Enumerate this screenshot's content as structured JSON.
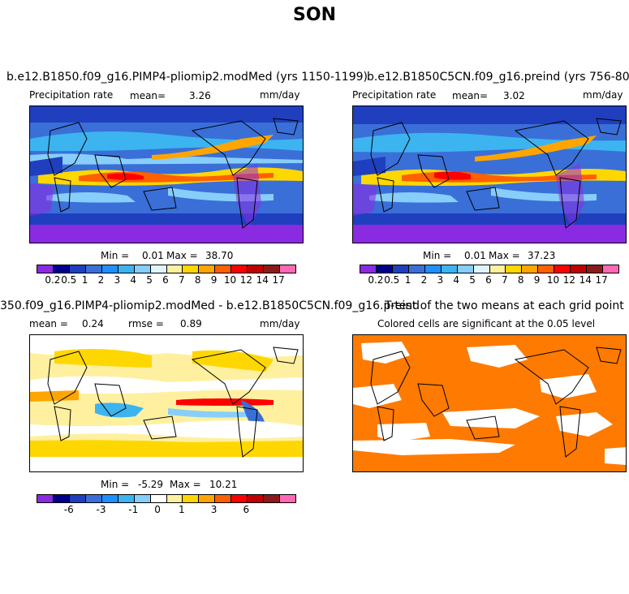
{
  "page": {
    "title": "SON"
  },
  "panels": {
    "top_left": {
      "title": "b.e12.B1850.f09_g16.PIMP4-pliomip2.modMed (yrs 1150-1199)",
      "variable": "Precipitation rate",
      "mean_label": "mean=",
      "mean_value": "3.26",
      "units": "mm/day",
      "min_label": "Min =",
      "min_value": "0.01",
      "max_label": "Max =",
      "max_value": "38.70"
    },
    "top_right": {
      "title": "b.e12.B1850C5CN.f09_g16.preind (yrs 756-805)",
      "variable": "Precipitation rate",
      "mean_label": "mean=",
      "mean_value": "3.02",
      "units": "mm/day",
      "min_label": "Min =",
      "min_value": "0.01",
      "max_label": "Max =",
      "max_value": "37.23"
    },
    "bottom_left": {
      "title": "350.f09_g16.PIMP4-pliomip2.modMed - b.e12.B1850C5CN.f09_g16.preind",
      "mean_label": "mean =",
      "mean_value": "0.24",
      "rmse_label": "rmse =",
      "rmse_value": "0.89",
      "units": "mm/day",
      "min_label": "Min =",
      "min_value": "-5.29",
      "max_label": "Max =",
      "max_value": "10.21"
    },
    "bottom_right": {
      "title": "T-test of the two means at each grid point",
      "subtitle": "Colored cells are significant at the 0.05 level",
      "significant_color": "#ff7a00"
    }
  },
  "colorbars": {
    "precip": {
      "colors": [
        "#8a2be2",
        "#00008b",
        "#1f3fbf",
        "#3a6fd8",
        "#1e90ff",
        "#3cb4f0",
        "#87cefa",
        "#e0f4ff",
        "#fff0a0",
        "#ffd700",
        "#ffa500",
        "#ff6000",
        "#ff0000",
        "#c00000",
        "#8b1a1a",
        "#ff69b4"
      ],
      "ticks": [
        "0.2",
        "0.5",
        "1",
        "2",
        "3",
        "4",
        "5",
        "6",
        "7",
        "8",
        "9",
        "10",
        "12",
        "14",
        "17"
      ]
    },
    "diff": {
      "colors": [
        "#8a2be2",
        "#00008b",
        "#1f3fbf",
        "#3a6fd8",
        "#1e90ff",
        "#3cb4f0",
        "#87cefa",
        "#ffffff",
        "#fff0a0",
        "#ffd700",
        "#ffa500",
        "#ff6000",
        "#ff0000",
        "#c00000",
        "#8b1a1a",
        "#ff69b4"
      ],
      "ticks": [
        "-6",
        "-3",
        "-1",
        "0",
        "1",
        "3",
        "6"
      ]
    }
  },
  "chart_data": [
    {
      "type": "heatmap",
      "title": "b.e12.B1850.f09_g16.PIMP4-pliomip2.modMed (yrs 1150-1199)",
      "variable": "Precipitation rate",
      "units": "mm/day",
      "mean": 3.26,
      "min": 0.01,
      "max": 38.7,
      "levels": [
        0.2,
        0.5,
        1,
        2,
        3,
        4,
        5,
        6,
        7,
        8,
        9,
        10,
        12,
        14,
        17
      ]
    },
    {
      "type": "heatmap",
      "title": "b.e12.B1850C5CN.f09_g16.preind (yrs 756-805)",
      "variable": "Precipitation rate",
      "units": "mm/day",
      "mean": 3.02,
      "min": 0.01,
      "max": 37.23,
      "levels": [
        0.2,
        0.5,
        1,
        2,
        3,
        4,
        5,
        6,
        7,
        8,
        9,
        10,
        12,
        14,
        17
      ]
    },
    {
      "type": "heatmap",
      "title": "350.f09_g16.PIMP4-pliomip2.modMed - b.e12.B1850C5CN.f09_g16.preind",
      "units": "mm/day",
      "mean": 0.24,
      "rmse": 0.89,
      "min": -5.29,
      "max": 10.21,
      "tick_labels": [
        -6,
        -3,
        -1,
        0,
        1,
        3,
        6
      ]
    },
    {
      "type": "heatmap",
      "title": "T-test of the two means at each grid point",
      "subtitle": "Colored cells are significant at the 0.05 level"
    }
  ]
}
